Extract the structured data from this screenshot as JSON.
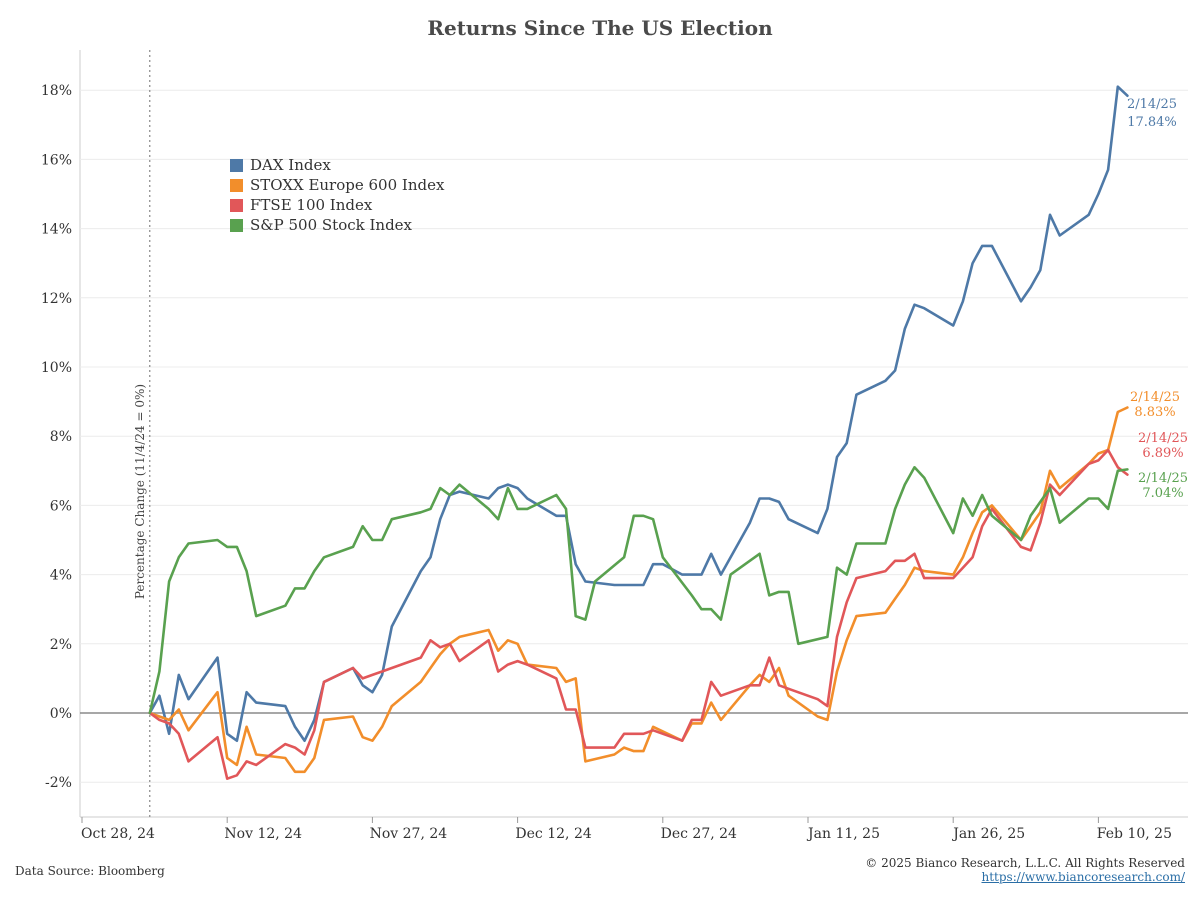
{
  "chart_data": {
    "type": "line",
    "title": "Returns Since The US Election",
    "ylabel": "Percentage Change (11/4/24 = 0%)",
    "xlabel": "",
    "ylim": [
      -3,
      19
    ],
    "y_ticks": [
      -2,
      0,
      2,
      4,
      6,
      8,
      10,
      12,
      14,
      16,
      18
    ],
    "y_tick_labels": [
      "-2%",
      "0%",
      "2%",
      "4%",
      "6%",
      "8%",
      "10%",
      "12%",
      "14%",
      "16%",
      "18%"
    ],
    "x_ticks": [
      "Oct 28, 24",
      "Nov 12, 24",
      "Nov 27, 24",
      "Dec 12, 24",
      "Dec 27, 24",
      "Jan 11, 25",
      "Jan 26, 25",
      "Feb 10, 25"
    ],
    "x_tick_days": [
      0,
      15,
      30,
      45,
      60,
      75,
      90,
      105
    ],
    "reference_day": 7,
    "series": [
      {
        "name": "DAX Index",
        "color": "#4e79a7",
        "end_date": "2/14/25",
        "end_value_label": "17.84%",
        "points": [
          [
            7,
            0
          ],
          [
            8,
            0.5
          ],
          [
            9,
            -0.6
          ],
          [
            10,
            1.1
          ],
          [
            11,
            0.4
          ],
          [
            14,
            1.6
          ],
          [
            15,
            -0.6
          ],
          [
            16,
            -0.8
          ],
          [
            17,
            0.6
          ],
          [
            18,
            0.3
          ],
          [
            21,
            0.2
          ],
          [
            22,
            -0.4
          ],
          [
            23,
            -0.8
          ],
          [
            24,
            -0.2
          ],
          [
            25,
            0.9
          ],
          [
            28,
            1.3
          ],
          [
            29,
            0.8
          ],
          [
            30,
            0.6
          ],
          [
            31,
            1.1
          ],
          [
            32,
            2.5
          ],
          [
            35,
            4.1
          ],
          [
            36,
            4.5
          ],
          [
            37,
            5.6
          ],
          [
            38,
            6.3
          ],
          [
            39,
            6.4
          ],
          [
            42,
            6.2
          ],
          [
            43,
            6.5
          ],
          [
            44,
            6.6
          ],
          [
            45,
            6.5
          ],
          [
            46,
            6.2
          ],
          [
            49,
            5.7
          ],
          [
            50,
            5.7
          ],
          [
            51,
            4.3
          ],
          [
            52,
            3.8
          ],
          [
            55,
            3.7
          ],
          [
            56,
            3.7
          ],
          [
            57,
            3.7
          ],
          [
            58,
            3.7
          ],
          [
            59,
            4.3
          ],
          [
            60,
            4.3
          ],
          [
            62,
            4.0
          ],
          [
            63,
            4.0
          ],
          [
            64,
            4.0
          ],
          [
            65,
            4.6
          ],
          [
            66,
            4.0
          ],
          [
            69,
            5.5
          ],
          [
            70,
            6.2
          ],
          [
            71,
            6.2
          ],
          [
            72,
            6.1
          ],
          [
            73,
            5.6
          ],
          [
            76,
            5.2
          ],
          [
            77,
            5.9
          ],
          [
            78,
            7.4
          ],
          [
            79,
            7.8
          ],
          [
            80,
            9.2
          ],
          [
            83,
            9.6
          ],
          [
            84,
            9.9
          ],
          [
            85,
            11.1
          ],
          [
            86,
            11.8
          ],
          [
            87,
            11.7
          ],
          [
            90,
            11.2
          ],
          [
            91,
            11.9
          ],
          [
            92,
            13.0
          ],
          [
            93,
            13.5
          ],
          [
            94,
            13.5
          ],
          [
            97,
            11.9
          ],
          [
            98,
            12.3
          ],
          [
            99,
            12.8
          ],
          [
            100,
            14.4
          ],
          [
            101,
            13.8
          ],
          [
            104,
            14.4
          ],
          [
            105,
            15.0
          ],
          [
            106,
            15.7
          ],
          [
            107,
            18.1
          ],
          [
            108,
            17.84
          ]
        ]
      },
      {
        "name": "STOXX Europe 600 Index",
        "color": "#f28e2b",
        "end_date": "2/14/25",
        "end_value_label": "8.83%",
        "points": [
          [
            7,
            0
          ],
          [
            8,
            -0.1
          ],
          [
            9,
            -0.2
          ],
          [
            10,
            0.1
          ],
          [
            11,
            -0.5
          ],
          [
            14,
            0.6
          ],
          [
            15,
            -1.3
          ],
          [
            16,
            -1.5
          ],
          [
            17,
            -0.4
          ],
          [
            18,
            -1.2
          ],
          [
            21,
            -1.3
          ],
          [
            22,
            -1.7
          ],
          [
            23,
            -1.7
          ],
          [
            24,
            -1.3
          ],
          [
            25,
            -0.2
          ],
          [
            28,
            -0.1
          ],
          [
            29,
            -0.7
          ],
          [
            30,
            -0.8
          ],
          [
            31,
            -0.4
          ],
          [
            32,
            0.2
          ],
          [
            35,
            0.9
          ],
          [
            36,
            1.3
          ],
          [
            37,
            1.7
          ],
          [
            38,
            2.0
          ],
          [
            39,
            2.2
          ],
          [
            42,
            2.4
          ],
          [
            43,
            1.8
          ],
          [
            44,
            2.1
          ],
          [
            45,
            2.0
          ],
          [
            46,
            1.4
          ],
          [
            49,
            1.3
          ],
          [
            50,
            0.9
          ],
          [
            51,
            1.0
          ],
          [
            52,
            -1.4
          ],
          [
            55,
            -1.2
          ],
          [
            56,
            -1.0
          ],
          [
            57,
            -1.1
          ],
          [
            58,
            -1.1
          ],
          [
            59,
            -0.4
          ],
          [
            62,
            -0.8
          ],
          [
            63,
            -0.3
          ],
          [
            64,
            -0.3
          ],
          [
            65,
            0.3
          ],
          [
            66,
            -0.2
          ],
          [
            69,
            0.8
          ],
          [
            70,
            1.1
          ],
          [
            71,
            0.9
          ],
          [
            72,
            1.3
          ],
          [
            73,
            0.5
          ],
          [
            76,
            -0.1
          ],
          [
            77,
            -0.2
          ],
          [
            78,
            1.2
          ],
          [
            79,
            2.1
          ],
          [
            80,
            2.8
          ],
          [
            83,
            2.9
          ],
          [
            84,
            3.3
          ],
          [
            85,
            3.7
          ],
          [
            86,
            4.2
          ],
          [
            87,
            4.1
          ],
          [
            90,
            4.0
          ],
          [
            91,
            4.5
          ],
          [
            92,
            5.2
          ],
          [
            93,
            5.8
          ],
          [
            94,
            6.0
          ],
          [
            97,
            5.0
          ],
          [
            98,
            5.4
          ],
          [
            99,
            5.8
          ],
          [
            100,
            7.0
          ],
          [
            101,
            6.5
          ],
          [
            104,
            7.2
          ],
          [
            105,
            7.5
          ],
          [
            106,
            7.6
          ],
          [
            107,
            8.7
          ],
          [
            108,
            8.83
          ]
        ]
      },
      {
        "name": "FTSE 100 Index",
        "color": "#e15759",
        "end_date": "2/14/25",
        "end_value_label": "6.89%",
        "points": [
          [
            7,
            0
          ],
          [
            8,
            -0.2
          ],
          [
            9,
            -0.3
          ],
          [
            10,
            -0.6
          ],
          [
            11,
            -1.4
          ],
          [
            14,
            -0.7
          ],
          [
            15,
            -1.9
          ],
          [
            16,
            -1.8
          ],
          [
            17,
            -1.4
          ],
          [
            18,
            -1.5
          ],
          [
            21,
            -0.9
          ],
          [
            22,
            -1.0
          ],
          [
            23,
            -1.2
          ],
          [
            24,
            -0.5
          ],
          [
            25,
            0.9
          ],
          [
            28,
            1.3
          ],
          [
            29,
            1.0
          ],
          [
            30,
            1.1
          ],
          [
            31,
            1.2
          ],
          [
            32,
            1.3
          ],
          [
            35,
            1.6
          ],
          [
            36,
            2.1
          ],
          [
            37,
            1.9
          ],
          [
            38,
            2.0
          ],
          [
            39,
            1.5
          ],
          [
            42,
            2.1
          ],
          [
            43,
            1.2
          ],
          [
            44,
            1.4
          ],
          [
            45,
            1.5
          ],
          [
            46,
            1.4
          ],
          [
            49,
            1.0
          ],
          [
            50,
            0.1
          ],
          [
            51,
            0.1
          ],
          [
            52,
            -1.0
          ],
          [
            55,
            -1.0
          ],
          [
            56,
            -0.6
          ],
          [
            57,
            -0.6
          ],
          [
            58,
            -0.6
          ],
          [
            59,
            -0.5
          ],
          [
            62,
            -0.8
          ],
          [
            63,
            -0.2
          ],
          [
            64,
            -0.2
          ],
          [
            65,
            0.9
          ],
          [
            66,
            0.5
          ],
          [
            69,
            0.8
          ],
          [
            70,
            0.8
          ],
          [
            71,
            1.6
          ],
          [
            72,
            0.8
          ],
          [
            73,
            0.7
          ],
          [
            76,
            0.4
          ],
          [
            77,
            0.2
          ],
          [
            78,
            2.2
          ],
          [
            79,
            3.2
          ],
          [
            80,
            3.9
          ],
          [
            83,
            4.1
          ],
          [
            84,
            4.4
          ],
          [
            85,
            4.4
          ],
          [
            86,
            4.6
          ],
          [
            87,
            3.9
          ],
          [
            90,
            3.9
          ],
          [
            91,
            4.2
          ],
          [
            92,
            4.5
          ],
          [
            93,
            5.4
          ],
          [
            94,
            5.9
          ],
          [
            97,
            4.8
          ],
          [
            98,
            4.7
          ],
          [
            99,
            5.5
          ],
          [
            100,
            6.6
          ],
          [
            101,
            6.3
          ],
          [
            104,
            7.2
          ],
          [
            105,
            7.3
          ],
          [
            106,
            7.6
          ],
          [
            107,
            7.1
          ],
          [
            108,
            6.89
          ]
        ]
      },
      {
        "name": "S&P 500 Stock Index",
        "color": "#59a14f",
        "end_date": "2/14/25",
        "end_value_label": "7.04%",
        "points": [
          [
            7,
            0
          ],
          [
            8,
            1.2
          ],
          [
            9,
            3.8
          ],
          [
            10,
            4.5
          ],
          [
            11,
            4.9
          ],
          [
            14,
            5.0
          ],
          [
            15,
            4.8
          ],
          [
            16,
            4.8
          ],
          [
            17,
            4.1
          ],
          [
            18,
            2.8
          ],
          [
            21,
            3.1
          ],
          [
            22,
            3.6
          ],
          [
            23,
            3.6
          ],
          [
            24,
            4.1
          ],
          [
            25,
            4.5
          ],
          [
            28,
            4.8
          ],
          [
            29,
            5.4
          ],
          [
            30,
            5.0
          ],
          [
            31,
            5.0
          ],
          [
            32,
            5.6
          ],
          [
            35,
            5.8
          ],
          [
            36,
            5.9
          ],
          [
            37,
            6.5
          ],
          [
            38,
            6.3
          ],
          [
            39,
            6.6
          ],
          [
            42,
            5.9
          ],
          [
            43,
            5.6
          ],
          [
            44,
            6.5
          ],
          [
            45,
            5.9
          ],
          [
            46,
            5.9
          ],
          [
            49,
            6.3
          ],
          [
            50,
            5.9
          ],
          [
            51,
            2.8
          ],
          [
            52,
            2.7
          ],
          [
            53,
            3.8
          ],
          [
            56,
            4.5
          ],
          [
            57,
            5.7
          ],
          [
            58,
            5.7
          ],
          [
            59,
            5.6
          ],
          [
            60,
            4.5
          ],
          [
            63,
            3.4
          ],
          [
            64,
            3.0
          ],
          [
            65,
            3.0
          ],
          [
            66,
            2.7
          ],
          [
            67,
            4.0
          ],
          [
            70,
            4.6
          ],
          [
            71,
            3.4
          ],
          [
            72,
            3.5
          ],
          [
            73,
            3.5
          ],
          [
            74,
            2.0
          ],
          [
            77,
            2.2
          ],
          [
            78,
            4.2
          ],
          [
            79,
            4.0
          ],
          [
            80,
            4.9
          ],
          [
            83,
            4.9
          ],
          [
            84,
            5.9
          ],
          [
            85,
            6.6
          ],
          [
            86,
            7.1
          ],
          [
            87,
            6.8
          ],
          [
            90,
            5.2
          ],
          [
            91,
            6.2
          ],
          [
            92,
            5.7
          ],
          [
            93,
            6.3
          ],
          [
            94,
            5.7
          ],
          [
            97,
            5.0
          ],
          [
            98,
            5.7
          ],
          [
            99,
            6.1
          ],
          [
            100,
            6.5
          ],
          [
            101,
            5.5
          ],
          [
            104,
            6.2
          ],
          [
            105,
            6.2
          ],
          [
            106,
            5.9
          ],
          [
            107,
            7.0
          ],
          [
            108,
            7.04
          ]
        ]
      }
    ]
  },
  "footer": {
    "source": "Data Source: Bloomberg",
    "copyright": "© 2025 Bianco Research, L.L.C. All Rights Reserved",
    "url": "https://www.biancoresearch.com/"
  }
}
